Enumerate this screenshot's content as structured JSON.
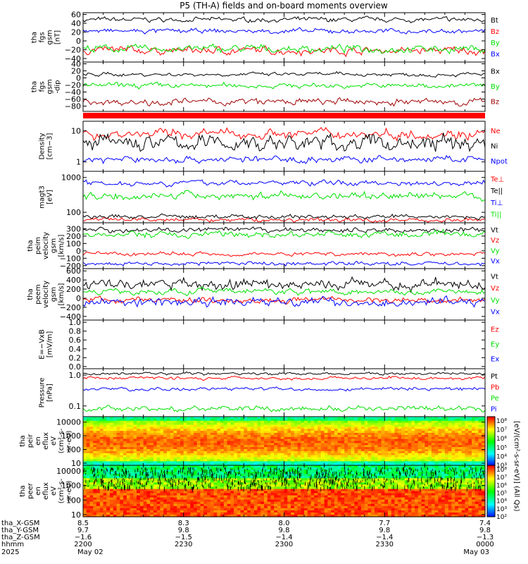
{
  "title": "P5 (TH-A) fields and on-board moments overview",
  "colors": {
    "black": "#000000",
    "red": "#ff0000",
    "green": "#00e000",
    "blue": "#0000ff",
    "darkred": "#a00000"
  },
  "chart_data": [
    {
      "type": "line",
      "ylabel": [
        "tha",
        "fgs",
        "gsm",
        "[nT]"
      ],
      "ticks": [
        "60",
        "40",
        "20",
        "0",
        "−20",
        "−40"
      ],
      "tick_values": [
        60,
        40,
        20,
        0,
        -20,
        -40
      ],
      "ylim": [
        -48,
        64
      ],
      "series": [
        {
          "name": "Bt",
          "color": "#000000",
          "value": 48,
          "amp": 5
        },
        {
          "name": "Bz",
          "color": "#ff0000",
          "value": -22,
          "amp": 8
        },
        {
          "name": "By",
          "color": "#00e000",
          "value": -18,
          "amp": 8
        },
        {
          "name": "Bx",
          "color": "#0000ff",
          "value": 22,
          "amp": 5
        }
      ]
    },
    {
      "type": "line",
      "ylabel": [
        "tha",
        "fgs",
        "gsm",
        "-dip"
      ],
      "ticks": [
        "40",
        "20",
        "0",
        "−20",
        "−40",
        "−60",
        "−80"
      ],
      "tick_values": [
        40,
        20,
        0,
        -20,
        -40,
        -60,
        -80
      ],
      "ylim": [
        -95,
        45
      ],
      "series": [
        {
          "name": "Bx",
          "color": "#000000",
          "value": 10,
          "amp": 5
        },
        {
          "name": "By",
          "color": "#00e000",
          "value": -22,
          "amp": 7
        },
        {
          "name": "Bz",
          "color": "#a00000",
          "value": -68,
          "amp": 9
        }
      ]
    },
    {
      "type": "line",
      "ylabel": [
        "Density",
        "[cm−3]"
      ],
      "log": true,
      "ticks": [
        "10",
        "1"
      ],
      "tick_values": [
        10,
        1
      ],
      "ylim": [
        0.5,
        20
      ],
      "series": [
        {
          "name": "Ne",
          "color": "#ff0000",
          "value": 8,
          "amp": 0.15
        },
        {
          "name": "Ni",
          "color": "#000000",
          "value": 4,
          "amp": 0.25
        },
        {
          "name": "Npot",
          "color": "#0000ff",
          "value": 1.2,
          "amp": 0.1
        }
      ]
    },
    {
      "type": "line",
      "ylabel": [
        "magt3",
        "[eV]"
      ],
      "log": true,
      "ticks": [
        "1000",
        "100"
      ],
      "tick_values": [
        1000,
        100
      ],
      "ylim": [
        50,
        1500
      ],
      "series": [
        {
          "name": "Te⊥",
          "color": "#ff0000",
          "value": 60,
          "amp": 0.06
        },
        {
          "name": "Te||",
          "color": "#000000",
          "value": 75,
          "amp": 0.06
        },
        {
          "name": "Ti⊥",
          "color": "#0000ff",
          "value": 700,
          "amp": 0.07
        },
        {
          "name": "Ti||",
          "color": "#00e000",
          "value": 300,
          "amp": 0.1
        }
      ]
    },
    {
      "type": "line",
      "ylabel": [
        "tha",
        "peim",
        "velocity",
        "gsm",
        "[km/s]"
      ],
      "ticks": [
        "300",
        "200",
        "100",
        "0",
        "−100",
        "−200"
      ],
      "tick_values": [
        300,
        200,
        100,
        0,
        -100,
        -200
      ],
      "ylim": [
        -240,
        380
      ],
      "series": [
        {
          "name": "Vt",
          "color": "#000000",
          "value": 280,
          "amp": 30
        },
        {
          "name": "Vz",
          "color": "#ff0000",
          "value": -40,
          "amp": 25
        },
        {
          "name": "Vy",
          "color": "#00e000",
          "value": 220,
          "amp": 40
        },
        {
          "name": "Vx",
          "color": "#0000ff",
          "value": -170,
          "amp": 25
        }
      ]
    },
    {
      "type": "line",
      "ylabel": [
        "tha",
        "peem",
        "velocity",
        "gsm",
        "[km/s]"
      ],
      "ticks": [
        "600",
        "400",
        "200",
        "0",
        "−200",
        "−400"
      ],
      "tick_values": [
        600,
        400,
        200,
        0,
        -200,
        -400
      ],
      "ylim": [
        -480,
        650
      ],
      "series": [
        {
          "name": "Vt",
          "color": "#000000",
          "value": 300,
          "amp": 110
        },
        {
          "name": "Vz",
          "color": "#ff0000",
          "value": -40,
          "amp": 60
        },
        {
          "name": "Vy",
          "color": "#00e000",
          "value": 150,
          "amp": 60
        },
        {
          "name": "Vx",
          "color": "#0000ff",
          "value": -80,
          "amp": 90
        }
      ]
    },
    {
      "type": "line",
      "ylabel": [
        "E=−VxB",
        "[mV/m]"
      ],
      "ticks": [
        "1.0",
        "0.8",
        "0.6",
        "0.4",
        "0.2",
        "0.0"
      ],
      "tick_values": [
        1.0,
        0.8,
        0.6,
        0.4,
        0.2,
        0.0
      ],
      "ylim": [
        -0.05,
        1.05
      ],
      "series": [
        {
          "name": "Ez",
          "color": "#ff0000"
        },
        {
          "name": "Ey",
          "color": "#00e000"
        },
        {
          "name": "Ex",
          "color": "#0000ff"
        }
      ]
    },
    {
      "type": "line",
      "ylabel": [
        "Pressure",
        "[nPa]"
      ],
      "log": true,
      "ticks": [
        "1.0",
        "0.1"
      ],
      "tick_values": [
        1.0,
        0.1
      ],
      "ylim": [
        0.045,
        1.6
      ],
      "series": [
        {
          "name": "Pt",
          "color": "#000000",
          "value": 1.1,
          "amp": 0.04
        },
        {
          "name": "Pb",
          "color": "#ff0000",
          "value": 0.8,
          "amp": 0.05
        },
        {
          "name": "Pe",
          "color": "#00e000",
          "value": 0.08,
          "amp": 0.08
        },
        {
          "name": "Pi",
          "color": "#0000ff",
          "value": 0.35,
          "amp": 0.05
        }
      ]
    },
    {
      "type": "heatmap",
      "ylabel": [
        "tha",
        "peir",
        "en",
        "eflux",
        "eV",
        "(cm²‑s‑",
        "sr‑eV)"
      ],
      "log": true,
      "ticks": [
        "10000",
        "1000",
        "100",
        "10"
      ],
      "tick_values": [
        10000,
        1000,
        100,
        10
      ],
      "ylim": [
        7,
        25000
      ]
    },
    {
      "type": "heatmap",
      "ylabel": [
        "tha",
        "peer",
        "en",
        "eflux",
        "eV",
        "(cm²‑s‑",
        "sr‑eV)"
      ],
      "log": true,
      "ticks": [
        "10000",
        "1000",
        "100",
        "10"
      ],
      "tick_values": [
        10000,
        1000,
        100,
        10
      ],
      "ylim": [
        7,
        25000
      ]
    }
  ],
  "colorbars": [
    {
      "labels": [
        "10⁸",
        "10⁷",
        "10⁶",
        "10⁵",
        "10⁴",
        "10³"
      ]
    },
    {
      "labels": [
        "10⁸",
        "10⁷",
        "10⁶",
        "10⁵",
        "10⁴",
        "10³",
        "10²"
      ]
    }
  ],
  "colorbar_title": "[eV/(cm²-s-sr-eV)] (All Qs)",
  "xaxis": {
    "row_labels": [
      "tha_X-GSM",
      "tha_Y-GSM",
      "tha_Z-GSM",
      "hhmm",
      "2025"
    ],
    "columns": [
      {
        "values": [
          "8.5",
          "9.7",
          "−1.6",
          "2200",
          "May 02"
        ]
      },
      {
        "values": [
          "8.3",
          "9.8",
          "−1.5",
          "2230",
          ""
        ]
      },
      {
        "values": [
          "8.0",
          "9.8",
          "−1.4",
          "2300",
          ""
        ]
      },
      {
        "values": [
          "7.7",
          "9.8",
          "−1.4",
          "2330",
          ""
        ]
      },
      {
        "values": [
          "7.4",
          "9.8",
          "−1.3",
          "0000",
          "May 03"
        ]
      }
    ]
  }
}
